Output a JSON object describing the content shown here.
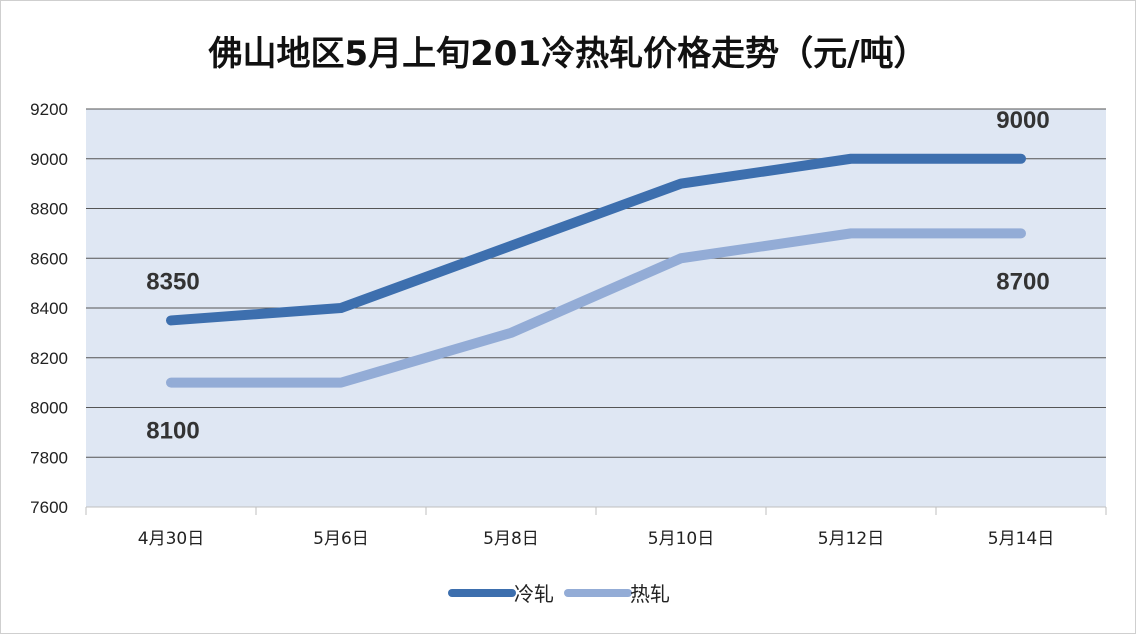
{
  "chart_data": {
    "type": "line",
    "title": "佛山地区5月上旬201冷热轧价格走势（元/吨）",
    "categories": [
      "4月30日",
      "5月6日",
      "5月8日",
      "5月10日",
      "5月12日",
      "5月14日"
    ],
    "series": [
      {
        "name": "冷轧",
        "values": [
          8350,
          8400,
          8650,
          8900,
          9000,
          9000
        ],
        "color": "#3d6fae"
      },
      {
        "name": "热轧",
        "values": [
          8100,
          8100,
          8300,
          8600,
          8700,
          8700
        ],
        "color": "#93acd6"
      }
    ],
    "ylim": [
      7600,
      9200
    ],
    "yticks": [
      7600,
      7800,
      8000,
      8200,
      8400,
      8600,
      8800,
      9000,
      9200
    ],
    "ytick_labels": [
      "7600",
      "7800",
      "8000",
      "8200",
      "8400",
      "8600",
      "8800",
      "9000",
      "9200"
    ],
    "data_labels": [
      {
        "series": "冷轧",
        "index": 0,
        "text": "8350",
        "position": "above"
      },
      {
        "series": "冷轧",
        "index": 5,
        "text": "9000",
        "position": "above"
      },
      {
        "series": "热轧",
        "index": 0,
        "text": "8100",
        "position": "below"
      },
      {
        "series": "热轧",
        "index": 5,
        "text": "8700",
        "position": "below"
      }
    ],
    "grid": true,
    "legend": "bottom",
    "plot_background": "#dfe7f3",
    "gridline_color": "#555555"
  }
}
